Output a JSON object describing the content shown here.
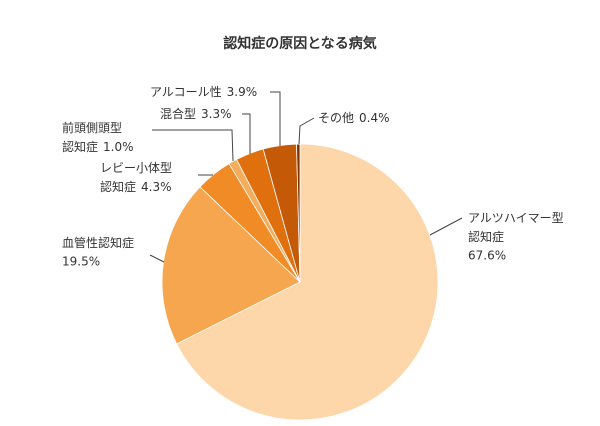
{
  "chart_data": {
    "type": "pie",
    "title": "認知症の原因となる病気",
    "categories": [
      [
        "アルツハイマー型",
        "認知症"
      ],
      [
        "血管性認知症"
      ],
      [
        "レビー小体型",
        "認知症"
      ],
      [
        "前頭側頭型",
        "認知症"
      ],
      [
        "混合型"
      ],
      [
        "アルコール性"
      ],
      [
        "その他"
      ]
    ],
    "values": [
      67.6,
      19.5,
      4.3,
      1.0,
      3.3,
      3.9,
      0.4
    ],
    "value_labels": [
      "67.6%",
      "19.5%",
      "4.3%",
      "1.0%",
      "3.3%",
      "3.9%",
      "0.4%"
    ],
    "colors": [
      "#fdd6aa",
      "#f6a64e",
      "#f08b26",
      "#f4ad5c",
      "#e0700e",
      "#c45a08",
      "#7f3300"
    ]
  }
}
